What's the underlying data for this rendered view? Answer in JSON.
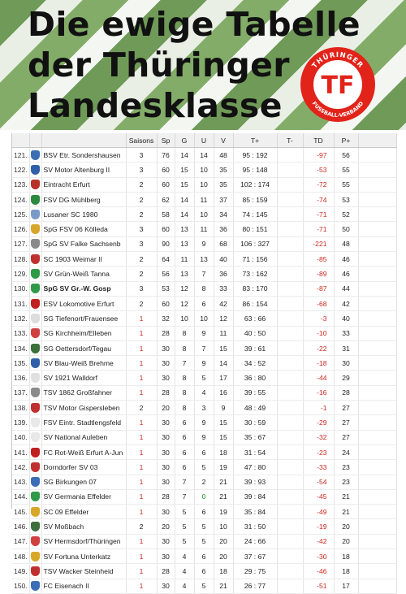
{
  "title_lines": [
    "Die ewige Tabelle",
    "der Thüringer",
    "Landesklasse"
  ],
  "logo": {
    "letters": "TF",
    "ring_top": "THÜRINGER",
    "ring_bottom": "FUSSBALL-VERBAND",
    "color": "#e2231a"
  },
  "columns": [
    "",
    "",
    "",
    "Saisons",
    "Sp",
    "G",
    "U",
    "V",
    "T+",
    "T-",
    "TD",
    "P+"
  ],
  "rows": [
    {
      "rank": "121.",
      "name": "BSV Etr. Sondershausen",
      "saisons": "3",
      "sp": "76",
      "g": "14",
      "u": "14",
      "v": "48",
      "goals": "95 : 192",
      "td": "-97",
      "p": "56",
      "crest": "#3a6fb5"
    },
    {
      "rank": "122.",
      "name": "SV Motor Altenburg II",
      "saisons": "3",
      "sp": "60",
      "g": "15",
      "u": "10",
      "v": "35",
      "goals": "95 : 148",
      "td": "-53",
      "p": "55",
      "crest": "#2f5fa8"
    },
    {
      "rank": "123.",
      "name": "Eintracht Erfurt",
      "saisons": "2",
      "sp": "60",
      "g": "15",
      "u": "10",
      "v": "35",
      "goals": "102 : 174",
      "td": "-72",
      "p": "55",
      "crest": "#b8322a"
    },
    {
      "rank": "124.",
      "name": "FSV DG Mühlberg",
      "saisons": "2",
      "sp": "62",
      "g": "14",
      "u": "11",
      "v": "37",
      "goals": "85 : 159",
      "td": "-74",
      "p": "53",
      "crest": "#2b8a3e"
    },
    {
      "rank": "125.",
      "name": "Lusaner SC 1980",
      "saisons": "2",
      "sp": "58",
      "g": "14",
      "u": "10",
      "v": "34",
      "goals": "74 : 145",
      "td": "-71",
      "p": "52",
      "crest": "#7a9ac8"
    },
    {
      "rank": "126.",
      "name": "SpG FSV 06 Kölleda",
      "saisons": "3",
      "sp": "60",
      "g": "13",
      "u": "11",
      "v": "36",
      "goals": "80 : 151",
      "td": "-71",
      "p": "50",
      "crest": "#d8a72a"
    },
    {
      "rank": "127.",
      "name": "SpG SV Falke Sachsenb",
      "saisons": "3",
      "sp": "90",
      "g": "13",
      "u": "9",
      "v": "68",
      "goals": "106 : 327",
      "td": "-221",
      "p": "48",
      "crest": "#8a8a8a"
    },
    {
      "rank": "128.",
      "name": "SC 1903 Weimar II",
      "saisons": "2",
      "sp": "64",
      "g": "11",
      "u": "13",
      "v": "40",
      "goals": "71 : 156",
      "td": "-85",
      "p": "46",
      "crest": "#c03030"
    },
    {
      "rank": "129.",
      "name": "SV Grün-Weiß Tanna",
      "saisons": "2",
      "sp": "56",
      "g": "13",
      "u": "7",
      "v": "36",
      "goals": "73 : 162",
      "td": "-89",
      "p": "46",
      "crest": "#2e9a48"
    },
    {
      "rank": "130.",
      "name": "SpG SV Gr.-W. Gosp",
      "saisons": "3",
      "sp": "53",
      "g": "12",
      "u": "8",
      "v": "33",
      "goals": "83 : 170",
      "td": "-87",
      "p": "44",
      "crest": "#2e9a48",
      "bold": true
    },
    {
      "rank": "131.",
      "name": "ESV Lokomotive Erfurt",
      "saisons": "2",
      "sp": "60",
      "g": "12",
      "u": "6",
      "v": "42",
      "goals": "86 : 154",
      "td": "-68",
      "p": "42",
      "crest": "#c02020"
    },
    {
      "rank": "132.",
      "name": "SG Tiefenort/Frauensee",
      "saisons": "1",
      "sp": "32",
      "g": "10",
      "u": "10",
      "v": "12",
      "goals": "63 : 66",
      "td": "-3",
      "p": "40",
      "crest": "#dddddd"
    },
    {
      "rank": "133.",
      "name": "SG Kirchheim/Elleben",
      "saisons": "1",
      "sp": "28",
      "g": "8",
      "u": "9",
      "v": "11",
      "goals": "40 : 50",
      "td": "-10",
      "p": "33",
      "crest": "#d04040"
    },
    {
      "rank": "134.",
      "name": "SG Oettersdorf/Tegau",
      "saisons": "1",
      "sp": "30",
      "g": "8",
      "u": "7",
      "v": "15",
      "goals": "39 : 61",
      "td": "-22",
      "p": "31",
      "crest": "#3d6f3d"
    },
    {
      "rank": "135.",
      "name": "SV Blau-Weiß Brehme",
      "saisons": "1",
      "sp": "30",
      "g": "7",
      "u": "9",
      "v": "14",
      "goals": "34 : 52",
      "td": "-18",
      "p": "30",
      "crest": "#2f5fa8"
    },
    {
      "rank": "136.",
      "name": "SV 1921 Walldorf",
      "saisons": "1",
      "sp": "30",
      "g": "8",
      "u": "5",
      "v": "17",
      "goals": "36 : 80",
      "td": "-44",
      "p": "29",
      "crest": "#e0e0e0"
    },
    {
      "rank": "137.",
      "name": "TSV 1862 Großfahner",
      "saisons": "1",
      "sp": "28",
      "g": "8",
      "u": "4",
      "v": "16",
      "goals": "39 : 55",
      "td": "-16",
      "p": "28",
      "crest": "#8a8a8a"
    },
    {
      "rank": "138.",
      "name": "TSV Motor Gispersleben",
      "saisons": "2",
      "sp": "20",
      "g": "8",
      "u": "3",
      "v": "9",
      "goals": "48 : 49",
      "td": "-1",
      "p": "27",
      "crest": "#c03030"
    },
    {
      "rank": "139.",
      "name": "FSV Eintr. Stadtlengsfeld",
      "saisons": "1",
      "sp": "30",
      "g": "6",
      "u": "9",
      "v": "15",
      "goals": "30 : 59",
      "td": "-29",
      "p": "27",
      "crest": "#e8e8e8"
    },
    {
      "rank": "140.",
      "name": "SV National Auleben",
      "saisons": "1",
      "sp": "30",
      "g": "6",
      "u": "9",
      "v": "15",
      "goals": "35 : 67",
      "td": "-32",
      "p": "27",
      "crest": "#e8e8e8"
    },
    {
      "rank": "141.",
      "name": "FC Rot-Weiß Erfurt A-Jun",
      "saisons": "1",
      "sp": "30",
      "g": "6",
      "u": "6",
      "v": "18",
      "goals": "31 : 54",
      "td": "-23",
      "p": "24",
      "crest": "#c02020"
    },
    {
      "rank": "142.",
      "name": "Dorndorfer SV 03",
      "saisons": "1",
      "sp": "30",
      "g": "6",
      "u": "5",
      "v": "19",
      "goals": "47 : 80",
      "td": "-33",
      "p": "23",
      "crest": "#c03030"
    },
    {
      "rank": "143.",
      "name": "SG Birkungen 07",
      "saisons": "1",
      "sp": "30",
      "g": "7",
      "u": "2",
      "v": "21",
      "goals": "39 : 93",
      "td": "-54",
      "p": "23",
      "crest": "#3a6fb5"
    },
    {
      "rank": "144.",
      "name": "SV Germania Effelder",
      "saisons": "1",
      "sp": "28",
      "g": "7",
      "u": "0",
      "v": "21",
      "goals": "39 : 84",
      "td": "-45",
      "p": "21",
      "crest": "#2e9a48",
      "u_green": true
    },
    {
      "rank": "145.",
      "name": "SC 09 Effelder",
      "saisons": "1",
      "sp": "30",
      "g": "5",
      "u": "6",
      "v": "19",
      "goals": "35 : 84",
      "td": "-49",
      "p": "21",
      "crest": "#d8a72a"
    },
    {
      "rank": "146.",
      "name": "SV Moßbach",
      "saisons": "2",
      "sp": "20",
      "g": "5",
      "u": "5",
      "v": "10",
      "goals": "31 : 50",
      "td": "-19",
      "p": "20",
      "crest": "#3d6f3d"
    },
    {
      "rank": "147.",
      "name": "SV Hermsdorf/Thüringen",
      "saisons": "1",
      "sp": "30",
      "g": "5",
      "u": "5",
      "v": "20",
      "goals": "24 : 66",
      "td": "-42",
      "p": "20",
      "crest": "#d04040"
    },
    {
      "rank": "148.",
      "name": "SV Fortuna Unterkatz",
      "saisons": "1",
      "sp": "30",
      "g": "4",
      "u": "6",
      "v": "20",
      "goals": "37 : 67",
      "td": "-30",
      "p": "18",
      "crest": "#d8a72a"
    },
    {
      "rank": "149.",
      "name": "TSV Wacker Steinheid",
      "saisons": "1",
      "sp": "28",
      "g": "4",
      "u": "6",
      "v": "18",
      "goals": "29 : 75",
      "td": "-46",
      "p": "18",
      "crest": "#c03030"
    },
    {
      "rank": "150.",
      "name": "FC Eisenach II",
      "saisons": "1",
      "sp": "30",
      "g": "4",
      "u": "5",
      "v": "21",
      "goals": "26 : 77",
      "td": "-51",
      "p": "17",
      "crest": "#3a6fb5"
    }
  ]
}
